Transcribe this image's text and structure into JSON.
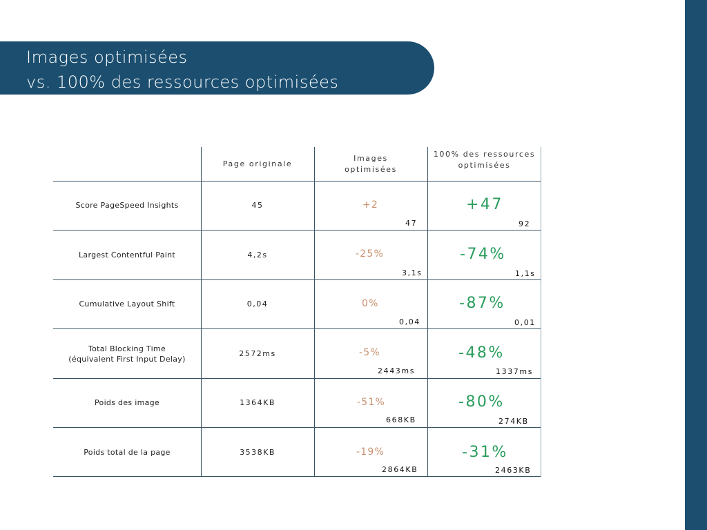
{
  "title": {
    "line1": "Images optimisées",
    "line2": "vs. 100% des ressources optimisées"
  },
  "table": {
    "headers": [
      "",
      "Page originale",
      "Images optimisées",
      "100% des ressources optimisées"
    ],
    "rows": [
      {
        "label": "Score PageSpeed Insights",
        "original": "45",
        "images_delta": "+2",
        "images_value": "47",
        "all_delta": "+47",
        "all_value": "92"
      },
      {
        "label": "Largest Contentful Paint",
        "original": "4,2s",
        "images_delta": "-25%",
        "images_value": "3,1s",
        "all_delta": "-74%",
        "all_value": "1,1s"
      },
      {
        "label": "Cumulative Layout Shift",
        "original": "0,04",
        "images_delta": "0%",
        "images_value": "0,04",
        "all_delta": "-87%",
        "all_value": "0,01"
      },
      {
        "label": "Total Blocking Time",
        "label2": "(équivalent First Input Delay)",
        "original": "2572ms",
        "images_delta": "-5%",
        "images_value": "2443ms",
        "all_delta": "-48%",
        "all_value": "1337ms"
      },
      {
        "label": "Poids des image",
        "original": "1364KB",
        "images_delta": "-51%",
        "images_value": "668KB",
        "all_delta": "-80%",
        "all_value": "274KB"
      },
      {
        "label": "Poids total de la page",
        "original": "3538KB",
        "images_delta": "-19%",
        "images_value": "2864KB",
        "all_delta": "-31%",
        "all_value": "2463KB"
      }
    ]
  },
  "colors": {
    "brand": "#1b4e6f",
    "images_delta": "#c8906e",
    "all_delta": "#2a9d5c"
  }
}
